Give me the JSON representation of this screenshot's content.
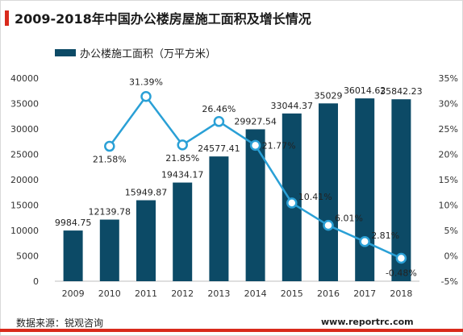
{
  "title": "2009-2018年中国办公楼房屋施工面积及增长情况",
  "footer": {
    "source": "数据来源：锐观咨询",
    "site": "www.reportrc.com"
  },
  "colors": {
    "bar": "#0c4a66",
    "line": "#2aa0d6",
    "accent": "#d92a1c"
  },
  "chart_data": {
    "type": "bar",
    "categories": [
      "2009",
      "2010",
      "2011",
      "2012",
      "2013",
      "2014",
      "2015",
      "2016",
      "2017",
      "2018"
    ],
    "series": [
      {
        "name": "办公楼施工面积（万平方米）",
        "type": "bar",
        "axis": "left",
        "values": [
          9984.75,
          12139.78,
          15949.87,
          19434.17,
          24577.41,
          29927.54,
          33044.37,
          35029,
          36014.62,
          35842.23
        ],
        "labels": [
          "9984.75",
          "12139.78",
          "15949.87",
          "19434.17",
          "24577.41",
          "29927.54",
          "33044.37",
          "35029",
          "36014.62",
          "35842.23"
        ]
      },
      {
        "type": "line",
        "axis": "right",
        "values": [
          null,
          21.58,
          31.39,
          21.85,
          26.46,
          21.77,
          10.41,
          6.01,
          2.81,
          -0.48
        ],
        "labels": [
          "",
          "21.58%",
          "31.39%",
          "21.85%",
          "26.46%",
          "21.77%",
          "10.41%",
          "6.01%",
          "2.81%",
          "-0.48%"
        ]
      }
    ],
    "y_left": {
      "lim": [
        0,
        40000
      ],
      "ticks": [
        0,
        5000,
        10000,
        15000,
        20000,
        25000,
        30000,
        35000,
        40000
      ],
      "tick_labels": [
        "0",
        "5000",
        "10000",
        "15000",
        "20000",
        "25000",
        "30000",
        "35000",
        "40000"
      ]
    },
    "y_right": {
      "lim": [
        -5,
        35
      ],
      "ticks": [
        -5,
        0,
        5,
        10,
        15,
        20,
        25,
        30,
        35
      ],
      "tick_labels": [
        "-5%",
        "0%",
        "5%",
        "10%",
        "15%",
        "20%",
        "25%",
        "30%",
        "35%"
      ]
    },
    "legend": {
      "position": "top-left",
      "entries": [
        "办公楼施工面积（万平方米）"
      ]
    },
    "grid": false
  }
}
